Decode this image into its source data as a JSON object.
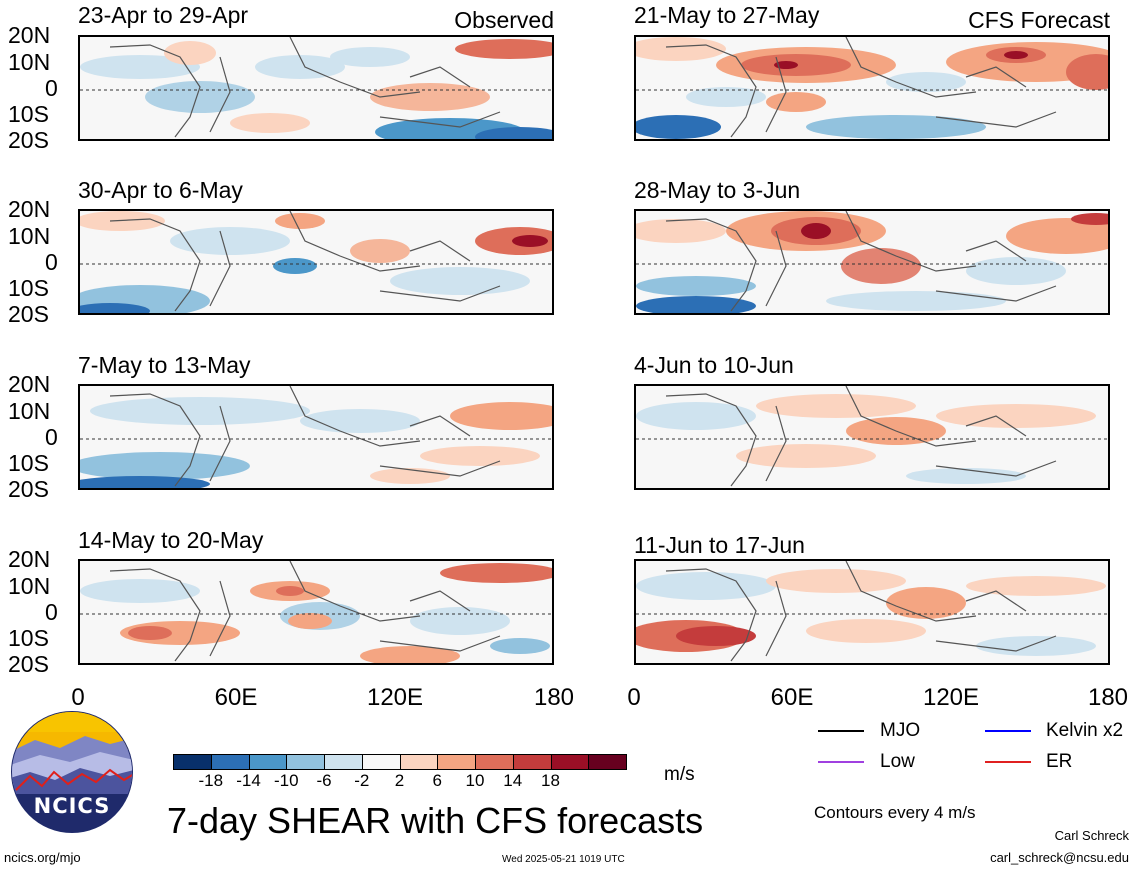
{
  "panels": {
    "left": [
      {
        "title": "23-Apr to 29-Apr",
        "tag": "Observed"
      },
      {
        "title": "30-Apr to 6-May",
        "tag": ""
      },
      {
        "title": "7-May to 13-May",
        "tag": ""
      },
      {
        "title": "14-May to 20-May",
        "tag": ""
      }
    ],
    "right": [
      {
        "title": "21-May to 27-May",
        "tag": "CFS Forecast"
      },
      {
        "title": "28-May to 3-Jun",
        "tag": ""
      },
      {
        "title": "4-Jun to 10-Jun",
        "tag": ""
      },
      {
        "title": "11-Jun to 17-Jun",
        "tag": ""
      }
    ]
  },
  "lat_labels": [
    "20N",
    "10N",
    "0",
    "10S",
    "20S"
  ],
  "lon_labels": [
    "0",
    "60E",
    "120E",
    "180"
  ],
  "colorbar": {
    "colors": [
      "#08306b",
      "#2c6fb5",
      "#4b97c9",
      "#92c2de",
      "#cfe3ef",
      "#f7f7f7",
      "#fbd4c0",
      "#f4a582",
      "#de6e5a",
      "#c43c3c",
      "#9a0f26",
      "#67001f"
    ],
    "labels": [
      "-18",
      "-14",
      "-10",
      "-6",
      "-2",
      "2",
      "6",
      "10",
      "14",
      "18"
    ],
    "unit": "m/s"
  },
  "legend": {
    "items": [
      {
        "label": "MJO",
        "color": "#000000"
      },
      {
        "label": "Kelvin x2",
        "color": "#0000ff"
      },
      {
        "label": "Low",
        "color": "#a040e0"
      },
      {
        "label": "ER",
        "color": "#e02020"
      }
    ],
    "contour_note": "Contours every 4 m/s"
  },
  "main_title": "7-day SHEAR with CFS forecasts",
  "logo_text": "NCICS",
  "footer": {
    "website": "ncics.org/mjo",
    "timestamp": "Wed 2025-05-21 1019 UTC",
    "author": "Carl Schreck",
    "email": "carl_schreck@ncsu.edu"
  }
}
